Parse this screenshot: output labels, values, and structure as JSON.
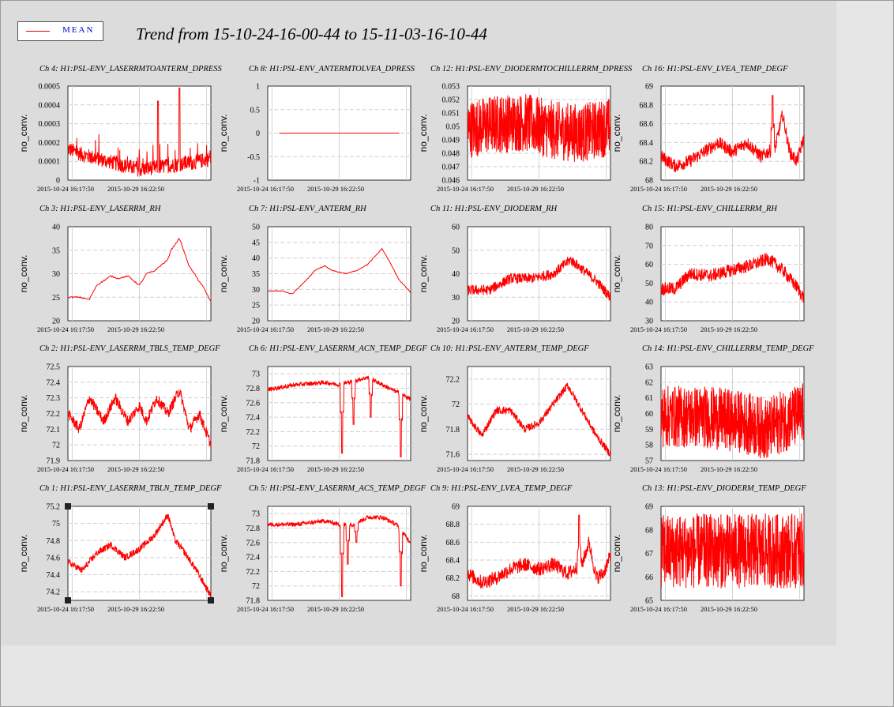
{
  "title": "Trend from 15-10-24-16-00-44 to 15-11-03-16-10-44",
  "legend": {
    "label": "MEAN",
    "color": "#ff0000"
  },
  "chart_data": [
    {
      "type": "line",
      "title": "Ch 4: H1:PSL-ENV_LASERRMTOANTERM_DPRESS",
      "ylabel": "no_conv.",
      "yticks": [
        "0",
        "0.0001",
        "0.0002",
        "0.0003",
        "0.0004",
        "0.0005"
      ],
      "ylim": [
        0,
        0.0005
      ],
      "xticks": [
        "2015-10-24 16:17:50",
        "2015-10-29 16:22:50"
      ],
      "pattern": "noisy_spiky",
      "x": [
        0,
        0.1,
        0.2,
        0.3,
        0.4,
        0.5,
        0.6,
        0.7,
        0.8,
        0.9,
        1.0
      ],
      "values": [
        0.00015,
        0.00012,
        0.0001,
        8e-05,
        6e-05,
        4e-05,
        5e-05,
        6e-05,
        7e-05,
        8e-05,
        0.0001
      ],
      "noise": 8e-05,
      "spikes": [
        [
          0.63,
          0.00042
        ],
        [
          0.78,
          0.00049
        ]
      ]
    },
    {
      "type": "line",
      "title": "Ch 8: H1:PSL-ENV_ANTERMTOLVEA_DPRESS",
      "ylabel": "no_conv.",
      "yticks": [
        "-1",
        "-0.5",
        "0",
        "0.5",
        "1"
      ],
      "ylim": [
        -1,
        1
      ],
      "xticks": [
        "2015-10-24 16:17:50",
        "2015-10-29 16:22:50"
      ],
      "pattern": "flat",
      "x": [
        0,
        1
      ],
      "values": [
        0,
        0
      ],
      "noise": 0,
      "spikes": []
    },
    {
      "type": "line",
      "title": "Ch 12: H1:PSL-ENV_DIODERMTOCHILLERRM_DPRESS",
      "ylabel": "no_conv.",
      "yticks": [
        "0.046",
        "0.047",
        "0.048",
        "0.049",
        "0.05",
        "0.051",
        "0.052",
        "0.053"
      ],
      "ylim": [
        0.046,
        0.053
      ],
      "xticks": [
        "2015-10-24 16:17:50",
        "2015-10-29 16:22:50"
      ],
      "pattern": "dense_noise",
      "x": [
        0,
        0.2,
        0.4,
        0.6,
        0.8,
        1.0
      ],
      "values": [
        0.0498,
        0.0502,
        0.0503,
        0.0497,
        0.0495,
        0.05
      ],
      "noise": 0.0022,
      "spikes": []
    },
    {
      "type": "line",
      "title": "Ch 16: H1:PSL-ENV_LVEA_TEMP_DEGF",
      "ylabel": "no_conv.",
      "yticks": [
        "68",
        "68.2",
        "68.4",
        "68.6",
        "68.8",
        "69"
      ],
      "ylim": [
        68,
        69
      ],
      "xticks": [
        "2015-10-24 16:17:50",
        "2015-10-29 16:22:50"
      ],
      "pattern": "wiggly",
      "x": [
        0,
        0.1,
        0.2,
        0.3,
        0.4,
        0.5,
        0.6,
        0.7,
        0.8,
        0.85,
        0.9,
        0.95,
        1.0
      ],
      "values": [
        68.25,
        68.15,
        68.2,
        68.3,
        68.4,
        68.3,
        68.4,
        68.25,
        68.35,
        68.7,
        68.3,
        68.2,
        68.45
      ],
      "noise": 0.07,
      "spikes": [
        [
          0.78,
          68.9
        ]
      ]
    },
    {
      "type": "line",
      "title": "Ch 3: H1:PSL-ENV_LASERRM_RH",
      "ylabel": "no_conv.",
      "yticks": [
        "20",
        "25",
        "30",
        "35",
        "40"
      ],
      "ylim": [
        20,
        40
      ],
      "xticks": [
        "2015-10-24 16:17:50",
        "2015-10-29 16:22:50"
      ],
      "pattern": "smooth",
      "x": [
        0,
        0.08,
        0.15,
        0.2,
        0.3,
        0.35,
        0.42,
        0.5,
        0.55,
        0.6,
        0.7,
        0.72,
        0.78,
        0.85,
        0.95,
        1.0
      ],
      "values": [
        25,
        25,
        24.5,
        27.5,
        29.5,
        29,
        29.5,
        27.5,
        30,
        30.5,
        33,
        35,
        37.5,
        31.5,
        27,
        24
      ],
      "noise": 0.15,
      "spikes": []
    },
    {
      "type": "line",
      "title": "Ch 7: H1:PSL-ENV_ANTERM_RH",
      "ylabel": "no_conv.",
      "yticks": [
        "20",
        "25",
        "30",
        "35",
        "40",
        "45",
        "50"
      ],
      "ylim": [
        20,
        50
      ],
      "xticks": [
        "2015-10-24 16:17:50",
        "2015-10-29 16:22:50"
      ],
      "pattern": "smooth",
      "x": [
        0,
        0.1,
        0.17,
        0.25,
        0.33,
        0.4,
        0.45,
        0.55,
        0.62,
        0.7,
        0.8,
        0.85,
        0.92,
        1.0
      ],
      "values": [
        29.5,
        29.5,
        28.5,
        32,
        36,
        37.5,
        36,
        35,
        36,
        38,
        43,
        39,
        33,
        29
      ],
      "noise": 0.15,
      "spikes": []
    },
    {
      "type": "line",
      "title": "Ch 11: H1:PSL-ENV_DIODERM_RH",
      "ylabel": "no_conv.",
      "yticks": [
        "20",
        "30",
        "40",
        "50",
        "60"
      ],
      "ylim": [
        20,
        60
      ],
      "xticks": [
        "2015-10-24 16:17:50",
        "2015-10-29 16:22:50"
      ],
      "pattern": "noisy",
      "x": [
        0,
        0.15,
        0.3,
        0.45,
        0.6,
        0.72,
        0.8,
        0.9,
        1.0
      ],
      "values": [
        33,
        33,
        38,
        38,
        40,
        46,
        42,
        37,
        30
      ],
      "noise": 2.2,
      "spikes": []
    },
    {
      "type": "line",
      "title": "Ch 15: H1:PSL-ENV_CHILLERRM_RH",
      "ylabel": "no_conv.",
      "yticks": [
        "30",
        "40",
        "50",
        "60",
        "70",
        "80"
      ],
      "ylim": [
        30,
        80
      ],
      "xticks": [
        "2015-10-24 16:17:50",
        "2015-10-29 16:22:50"
      ],
      "pattern": "noisy",
      "x": [
        0,
        0.1,
        0.2,
        0.35,
        0.5,
        0.65,
        0.75,
        0.85,
        0.95,
        1.0
      ],
      "values": [
        47,
        47,
        55,
        54,
        57,
        60,
        63,
        57,
        48,
        42
      ],
      "noise": 3.5,
      "spikes": []
    },
    {
      "type": "line",
      "title": "Ch 2: H1:PSL-ENV_LASERRM_TBLS_TEMP_DEGF",
      "ylabel": "no_conv.",
      "yticks": [
        "71.9",
        "72",
        "72.1",
        "72.2",
        "72.3",
        "72.4",
        "72.5"
      ],
      "ylim": [
        71.9,
        72.5
      ],
      "xticks": [
        "2015-10-24 16:17:50",
        "2015-10-29 16:22:50"
      ],
      "pattern": "wiggly",
      "x": [
        0,
        0.08,
        0.15,
        0.25,
        0.33,
        0.42,
        0.5,
        0.55,
        0.62,
        0.7,
        0.78,
        0.85,
        0.92,
        1.0
      ],
      "values": [
        72.2,
        72.1,
        72.3,
        72.15,
        72.3,
        72.15,
        72.25,
        72.15,
        72.3,
        72.2,
        72.35,
        72.1,
        72.2,
        72.0
      ],
      "noise": 0.035,
      "spikes": []
    },
    {
      "type": "line",
      "title": "Ch 6: H1:PSL-ENV_LASERRM_ACN_TEMP_DEGF",
      "ylabel": "no_conv.",
      "yticks": [
        "71.8",
        "72",
        "72.2",
        "72.4",
        "72.6",
        "72.8",
        "73"
      ],
      "ylim": [
        71.8,
        73.1
      ],
      "xticks": [
        "2015-10-24 16:17:50",
        "2015-10-29 16:22:50"
      ],
      "pattern": "dropout",
      "x": [
        0,
        0.2,
        0.4,
        0.5,
        0.6,
        0.7,
        0.8,
        0.9,
        1.0
      ],
      "values": [
        72.78,
        72.85,
        72.88,
        72.85,
        72.9,
        72.95,
        72.85,
        72.75,
        72.65
      ],
      "noise": 0.03,
      "spikes": [
        [
          0.52,
          71.9
        ],
        [
          0.6,
          72.3
        ],
        [
          0.72,
          72.4
        ],
        [
          0.93,
          71.85
        ]
      ]
    },
    {
      "type": "line",
      "title": "Ch 10: H1:PSL-ENV_ANTERM_TEMP_DEGF",
      "ylabel": "no_conv.",
      "yticks": [
        "71.6",
        "71.8",
        "72",
        "72.2"
      ],
      "ylim": [
        71.55,
        72.3
      ],
      "xticks": [
        "2015-10-24 16:17:50",
        "2015-10-29 16:22:50"
      ],
      "pattern": "wiggly",
      "x": [
        0,
        0.1,
        0.2,
        0.3,
        0.4,
        0.5,
        0.6,
        0.7,
        0.75,
        0.8,
        0.9,
        1.0
      ],
      "values": [
        71.9,
        71.75,
        71.95,
        71.95,
        71.8,
        71.85,
        72.0,
        72.15,
        72.05,
        71.95,
        71.75,
        71.6
      ],
      "noise": 0.03,
      "spikes": []
    },
    {
      "type": "line",
      "title": "Ch 14: H1:PSL-ENV_CHILLERRM_TEMP_DEGF",
      "ylabel": "no_conv.",
      "yticks": [
        "57",
        "58",
        "59",
        "60",
        "61",
        "62",
        "63"
      ],
      "ylim": [
        57,
        63
      ],
      "xticks": [
        "2015-10-24 16:17:50",
        "2015-10-29 16:22:50"
      ],
      "pattern": "dense_noise",
      "x": [
        0,
        0.3,
        0.55,
        0.75,
        0.85,
        1.0
      ],
      "values": [
        59.8,
        59.8,
        59.5,
        59.0,
        59.5,
        60.0
      ],
      "noise": 2.0,
      "spikes": []
    },
    {
      "type": "line",
      "title": "Ch 1: H1:PSL-ENV_LASERRM_TBLN_TEMP_DEGF",
      "ylabel": "no_conv.",
      "yticks": [
        "74.2",
        "74.4",
        "74.6",
        "74.8",
        "75",
        "75.2"
      ],
      "ylim": [
        74.1,
        75.2
      ],
      "xticks": [
        "2015-10-24 16:17:50",
        "2015-10-29 16:22:50"
      ],
      "pattern": "wiggly",
      "x": [
        0,
        0.1,
        0.2,
        0.3,
        0.4,
        0.5,
        0.6,
        0.7,
        0.75,
        0.8,
        0.9,
        1.0
      ],
      "values": [
        74.55,
        74.45,
        74.65,
        74.75,
        74.6,
        74.7,
        74.85,
        75.1,
        74.8,
        74.7,
        74.45,
        74.15
      ],
      "noise": 0.04,
      "spikes": []
    },
    {
      "type": "line",
      "title": "Ch 5: H1:PSL-ENV_LASERRM_ACS_TEMP_DEGF",
      "ylabel": "no_conv.",
      "yticks": [
        "71.8",
        "72",
        "72.2",
        "72.4",
        "72.6",
        "72.8",
        "73"
      ],
      "ylim": [
        71.8,
        73.1
      ],
      "xticks": [
        "2015-10-24 16:17:50",
        "2015-10-29 16:22:50"
      ],
      "pattern": "dropout",
      "x": [
        0,
        0.2,
        0.4,
        0.5,
        0.6,
        0.7,
        0.8,
        0.9,
        1.0
      ],
      "values": [
        72.85,
        72.85,
        72.9,
        72.85,
        72.85,
        72.95,
        72.95,
        72.85,
        72.6
      ],
      "noise": 0.03,
      "spikes": [
        [
          0.52,
          71.85
        ],
        [
          0.56,
          72.3
        ],
        [
          0.62,
          72.6
        ],
        [
          0.93,
          72.0
        ]
      ]
    },
    {
      "type": "line",
      "title": "Ch 9: H1:PSL-ENV_LVEA_TEMP_DEGF",
      "ylabel": "no_conv.",
      "yticks": [
        "68",
        "68.2",
        "68.4",
        "68.6",
        "68.8",
        "69"
      ],
      "ylim": [
        67.95,
        69
      ],
      "xticks": [
        "2015-10-24 16:17:50",
        "2015-10-29 16:22:50"
      ],
      "pattern": "wiggly",
      "x": [
        0,
        0.1,
        0.2,
        0.3,
        0.4,
        0.5,
        0.6,
        0.7,
        0.8,
        0.85,
        0.9,
        0.95,
        1.0
      ],
      "values": [
        68.25,
        68.15,
        68.2,
        68.3,
        68.35,
        68.3,
        68.35,
        68.25,
        68.35,
        68.6,
        68.2,
        68.25,
        68.45
      ],
      "noise": 0.08,
      "spikes": [
        [
          0.78,
          68.9
        ]
      ]
    },
    {
      "type": "line",
      "title": "Ch 13: H1:PSL-ENV_DIODERM_TEMP_DEGF",
      "ylabel": "no_conv.",
      "yticks": [
        "65",
        "66",
        "67",
        "68",
        "69"
      ],
      "ylim": [
        65,
        69
      ],
      "xticks": [
        "2015-10-24 16:17:50",
        "2015-10-29 16:22:50"
      ],
      "pattern": "dense_noise",
      "x": [
        0,
        1
      ],
      "values": [
        67.1,
        67.1
      ],
      "noise": 1.6,
      "spikes": []
    }
  ]
}
